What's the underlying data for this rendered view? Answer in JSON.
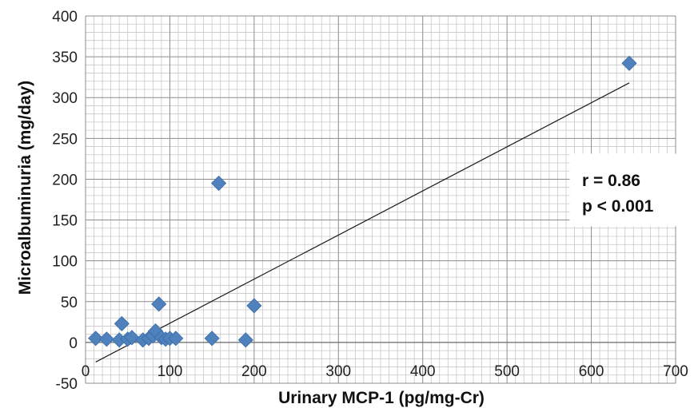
{
  "chart_data": {
    "type": "scatter",
    "xlabel": "Urinary MCP-1 (pg/mg-Cr)",
    "ylabel": "Microalbuminuria (mg/day)",
    "xlim": [
      0,
      700
    ],
    "ylim": [
      -50,
      400
    ],
    "x_ticks": [
      "0",
      "100",
      "200",
      "300",
      "400",
      "500",
      "600",
      "700"
    ],
    "y_ticks": [
      "-50",
      "0",
      "50",
      "100",
      "150",
      "200",
      "250",
      "300",
      "350",
      "400"
    ],
    "grid": true,
    "points": [
      {
        "x": 12,
        "y": 5
      },
      {
        "x": 25,
        "y": 4
      },
      {
        "x": 40,
        "y": 3
      },
      {
        "x": 43,
        "y": 23
      },
      {
        "x": 50,
        "y": 4
      },
      {
        "x": 55,
        "y": 6
      },
      {
        "x": 68,
        "y": 3
      },
      {
        "x": 75,
        "y": 5
      },
      {
        "x": 80,
        "y": 8
      },
      {
        "x": 83,
        "y": 14
      },
      {
        "x": 87,
        "y": 47
      },
      {
        "x": 90,
        "y": 6
      },
      {
        "x": 95,
        "y": 4
      },
      {
        "x": 100,
        "y": 5
      },
      {
        "x": 107,
        "y": 5
      },
      {
        "x": 150,
        "y": 5
      },
      {
        "x": 158,
        "y": 195
      },
      {
        "x": 190,
        "y": 3
      },
      {
        "x": 200,
        "y": 45
      },
      {
        "x": 645,
        "y": 342
      }
    ],
    "trendline": {
      "x": [
        12,
        645
      ],
      "y": [
        -24,
        318
      ]
    },
    "marker_color": "#4f81bd",
    "annotation": {
      "r": "r = 0.86",
      "p": "p < 0.001",
      "placement": "right"
    }
  }
}
